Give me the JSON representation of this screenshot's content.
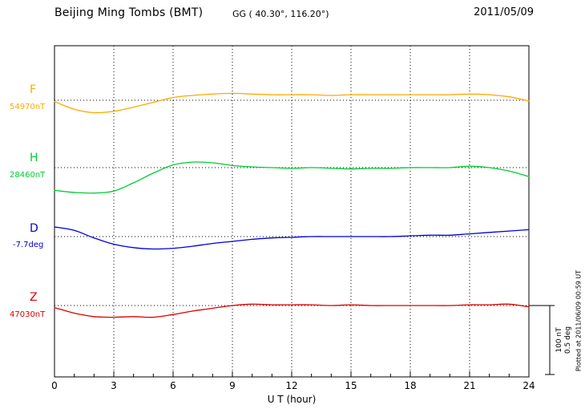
{
  "header": {
    "station_title": "Beijing Ming Tombs (BMT)",
    "coordinates": "GG ( 40.30°, 116.20°)",
    "date": "2011/05/09"
  },
  "axes": {
    "xlabel": "U T (hour)",
    "xticks": [
      0,
      3,
      6,
      9,
      12,
      15,
      18,
      21,
      24
    ],
    "x_range": [
      0,
      24
    ],
    "grid": "dotted vertical at 3h intervals, dotted horizontal at each trace baseline"
  },
  "scale_bar": {
    "label_nT": "100 nT",
    "label_deg": "0.5 deg",
    "nT_span": 100,
    "deg_span": 0.5
  },
  "plotted_note": "Plotted at 2011/06/09 00:59 UT",
  "chart_data": {
    "type": "line",
    "title": "Beijing Ming Tombs (BMT) magnetogram 2011/05/09",
    "xlabel": "U T (hour)",
    "x_range": [
      0,
      24
    ],
    "x_hours": [
      0,
      1,
      2,
      3,
      4,
      5,
      6,
      7,
      8,
      9,
      10,
      11,
      12,
      13,
      14,
      15,
      16,
      17,
      18,
      19,
      20,
      21,
      22,
      23,
      24
    ],
    "series": [
      {
        "name": "F",
        "baseline_label": "54970nT",
        "baseline_value": 54970,
        "unit": "nT",
        "color": "#FFA800",
        "values_offset_from_baseline": [
          -2,
          -13,
          -18,
          -16,
          -10,
          -3,
          4,
          7,
          9,
          10,
          9,
          8,
          8,
          8,
          7,
          8,
          8,
          8,
          8,
          8,
          8,
          9,
          8,
          5,
          -1
        ]
      },
      {
        "name": "H",
        "baseline_label": "28460nT",
        "baseline_value": 28460,
        "unit": "nT",
        "color": "#00CC33",
        "values_offset_from_baseline": [
          -33,
          -36,
          -37,
          -34,
          -22,
          -8,
          4,
          8,
          7,
          3,
          1,
          0,
          -1,
          0,
          -1,
          -2,
          -1,
          -1,
          0,
          0,
          0,
          2,
          0,
          -5,
          -13
        ]
      },
      {
        "name": "D",
        "baseline_label": "-7.7deg",
        "baseline_value": -7.7,
        "unit": "deg",
        "color": "#0000DD",
        "values_offset_from_baseline": [
          0.07,
          0.045,
          -0.01,
          -0.055,
          -0.08,
          -0.09,
          -0.085,
          -0.07,
          -0.05,
          -0.035,
          -0.02,
          -0.01,
          -0.005,
          0,
          0,
          0,
          0,
          0,
          0.005,
          0.01,
          0.01,
          0.02,
          0.03,
          0.04,
          0.05
        ]
      },
      {
        "name": "Z",
        "baseline_label": "47030nT",
        "baseline_value": 47030,
        "unit": "nT",
        "color": "#DD0000",
        "values_offset_from_baseline": [
          -3,
          -11,
          -16,
          -17,
          -16,
          -17,
          -13,
          -8,
          -4,
          0,
          2,
          1,
          1,
          1,
          0,
          1,
          0,
          0,
          0,
          0,
          0,
          1,
          1,
          2,
          -2
        ]
      }
    ]
  }
}
